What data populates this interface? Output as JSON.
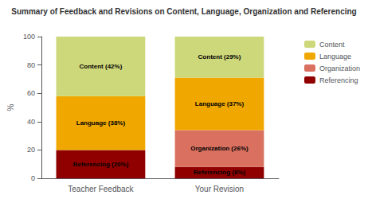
{
  "chart_data": {
    "type": "bar",
    "title": "Summary of Feedback and Revisions on Content, Language, Organization and Referencing",
    "categories": [
      "Teacher Feedback",
      "Your Revision"
    ],
    "series": [
      {
        "name": "Referencing",
        "color": "#900000",
        "values": [
          20,
          8
        ],
        "value_labels": [
          "Referencing (20%)",
          "Referencing (8%)"
        ]
      },
      {
        "name": "Organization",
        "color": "#d97060",
        "values": [
          0,
          26
        ],
        "value_labels": [
          null,
          "Organization (26%)"
        ]
      },
      {
        "name": "Language",
        "color": "#f0a800",
        "values": [
          38,
          37
        ],
        "value_labels": [
          "Language (38%)",
          "Language (37%)"
        ]
      },
      {
        "name": "Content",
        "color": "#cdd87a",
        "values": [
          42,
          29
        ],
        "value_labels": [
          "Content (42%)",
          "Content (29%)"
        ]
      }
    ],
    "ylabel": "%",
    "ylim": [
      0,
      100
    ],
    "yticks": [
      0,
      20,
      40,
      60,
      80,
      100
    ],
    "stacked": true,
    "data_labels": true,
    "legend": "upper right",
    "grid": false
  }
}
